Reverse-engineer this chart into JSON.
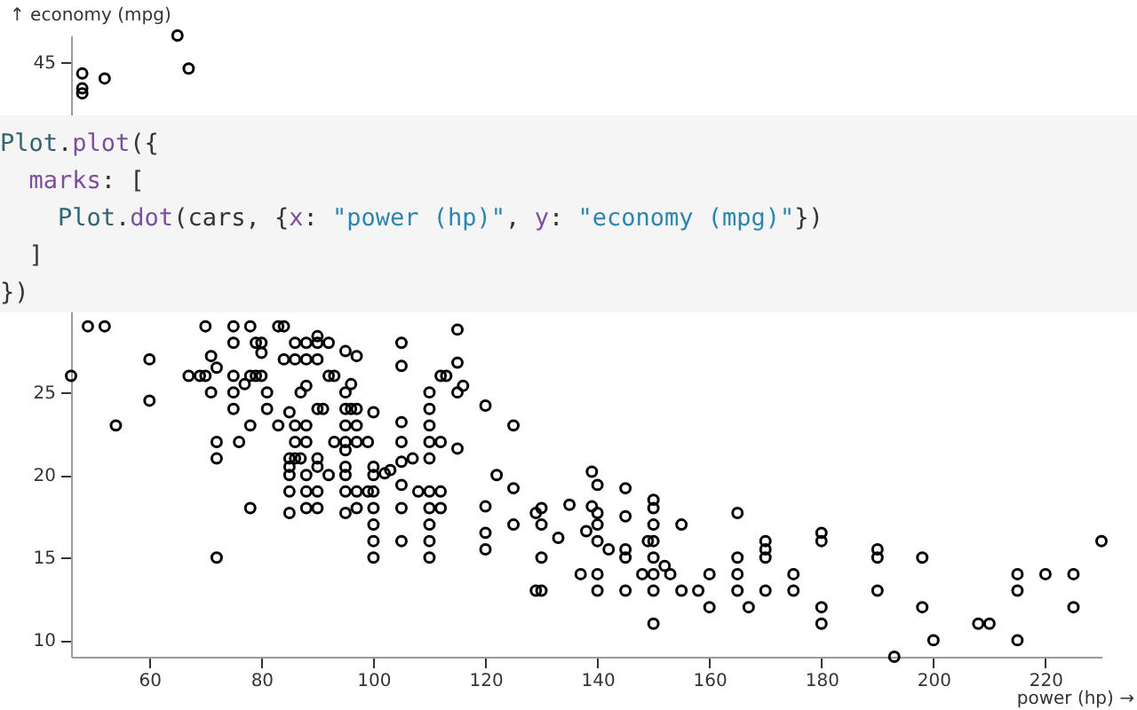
{
  "chart_data": {
    "type": "scatter",
    "xlabel": "power (hp) →",
    "ylabel": "↑ economy (mpg)",
    "color": "#000000",
    "marker": "circle",
    "xlim": [
      46,
      230
    ],
    "ylim": [
      9,
      46.6
    ],
    "xticks": [
      60,
      80,
      100,
      120,
      140,
      160,
      180,
      200,
      220
    ],
    "yticks": [
      10,
      15,
      20,
      25,
      45
    ],
    "annotations": [
      "Plot.plot({\n  marks: [\n    Plot.dot(cars, {x: \"power (hp)\", y: \"economy (mpg)\"})\n  ]\n})"
    ],
    "x": [
      65,
      67,
      48,
      52,
      48,
      48,
      49,
      52,
      46,
      54,
      60,
      60,
      70,
      71,
      72,
      67,
      69,
      70,
      71,
      72,
      72,
      72,
      75,
      78,
      83,
      84,
      90,
      75,
      79,
      80,
      86,
      88,
      90,
      92,
      105,
      80,
      95,
      97,
      105,
      84,
      86,
      88,
      90,
      75,
      78,
      79,
      80,
      92,
      93,
      112,
      96,
      77,
      75,
      81,
      87,
      88,
      95,
      110,
      75,
      81,
      85,
      90,
      91,
      95,
      96,
      97,
      100,
      110,
      78,
      83,
      86,
      88,
      95,
      97,
      105,
      110,
      76,
      86,
      88,
      93,
      95,
      97,
      99,
      105,
      110,
      112,
      85,
      86,
      87,
      90,
      95,
      105,
      107,
      110,
      85,
      90,
      95,
      100,
      102,
      103,
      85,
      88,
      92,
      95,
      100,
      105,
      85,
      88,
      90,
      95,
      97,
      99,
      100,
      108,
      110,
      112,
      78,
      85,
      88,
      90,
      95,
      97,
      100,
      105,
      110,
      112,
      100,
      110,
      100,
      105,
      110,
      100,
      110,
      115,
      115,
      113,
      115,
      116,
      120,
      125,
      115,
      122,
      125,
      120,
      129,
      130,
      135,
      139,
      140,
      139,
      140,
      140,
      130,
      125,
      120,
      120,
      133,
      138,
      140,
      142,
      145,
      145,
      145,
      145,
      150,
      150,
      150,
      150,
      150,
      150,
      150,
      150,
      149,
      130,
      129,
      130,
      137,
      140,
      140,
      145,
      148,
      152,
      153,
      155,
      155,
      158,
      160,
      160,
      165,
      165,
      165,
      165,
      167,
      170,
      170,
      170,
      170,
      175,
      175,
      180,
      180,
      180,
      180,
      190,
      190,
      190,
      193,
      198,
      198,
      200,
      208,
      210,
      215,
      215,
      215,
      220,
      225,
      225,
      230
    ],
    "values": [
      46.6,
      44.6,
      44.3,
      44,
      43.4,
      43.1,
      29,
      29,
      26,
      23,
      27,
      24.5,
      29,
      27.2,
      26.5,
      26,
      26,
      26,
      25,
      22,
      21,
      15,
      29,
      29,
      29,
      29,
      28.4,
      28,
      28,
      28,
      28,
      28,
      28,
      28,
      28,
      27.4,
      27.5,
      27.2,
      26.6,
      27,
      27,
      27,
      27,
      26,
      26,
      26,
      26,
      26,
      26,
      26,
      25.5,
      25.5,
      25,
      25,
      25,
      25.4,
      25,
      25,
      24,
      24,
      23.8,
      24,
      24,
      24,
      24,
      24,
      23.8,
      24,
      23,
      23,
      23,
      23,
      23,
      23,
      23.2,
      23,
      22,
      22,
      22,
      22,
      22,
      22,
      22,
      22,
      22,
      22,
      21,
      21,
      21,
      21,
      21.5,
      20.8,
      21,
      21,
      20.5,
      20.5,
      20.5,
      20.5,
      20.1,
      20.3,
      20,
      20,
      20,
      20,
      20,
      19.4,
      19,
      19,
      19,
      19,
      19,
      19,
      19,
      19,
      19,
      19,
      18,
      17.7,
      18,
      18,
      17.7,
      18,
      18,
      18,
      18,
      18,
      17,
      17,
      16,
      16,
      16,
      15,
      15,
      28.8,
      26.8,
      26,
      25,
      25.4,
      24.2,
      23,
      21.6,
      20,
      19.2,
      18.1,
      17.7,
      18,
      18.2,
      20.2,
      19.4,
      18.1,
      17.7,
      17,
      17,
      17,
      16.5,
      15.5,
      16.2,
      16.6,
      16,
      15.5,
      19.2,
      17.5,
      15.5,
      15,
      18.5,
      18,
      17,
      16,
      15,
      14,
      13,
      11,
      16,
      15,
      13,
      13,
      14,
      14,
      13,
      13,
      14,
      14.5,
      14,
      17,
      13,
      13,
      14,
      12,
      17.7,
      15,
      14,
      13,
      12,
      16,
      15.5,
      15,
      13,
      14,
      13,
      16.5,
      16,
      12,
      11,
      15.5,
      15,
      13,
      9,
      15,
      12,
      10,
      11,
      11,
      14,
      13,
      10,
      14,
      14,
      12,
      16
    ]
  }
}
